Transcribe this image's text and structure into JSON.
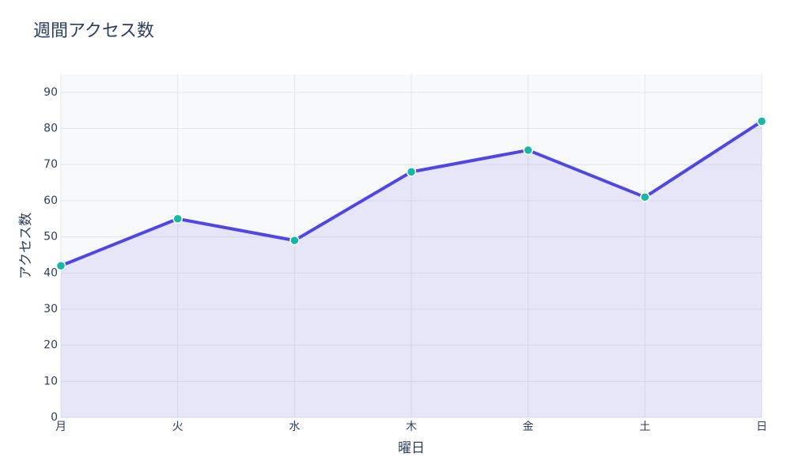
{
  "chart_data": {
    "type": "line",
    "title": "週間アクセス数",
    "x_label": "曜日",
    "y_label": "アクセス数",
    "categories": [
      "月",
      "火",
      "水",
      "木",
      "金",
      "土",
      "日"
    ],
    "values": [
      42,
      55,
      49,
      68,
      74,
      61,
      82
    ],
    "color": "#4f46e5",
    "marker_color": "#14b8a6",
    "fill": true,
    "ylim": [
      0,
      95
    ],
    "yticks": [
      0,
      10,
      20,
      30,
      40,
      50,
      60,
      70,
      80,
      90
    ],
    "grid": true
  }
}
